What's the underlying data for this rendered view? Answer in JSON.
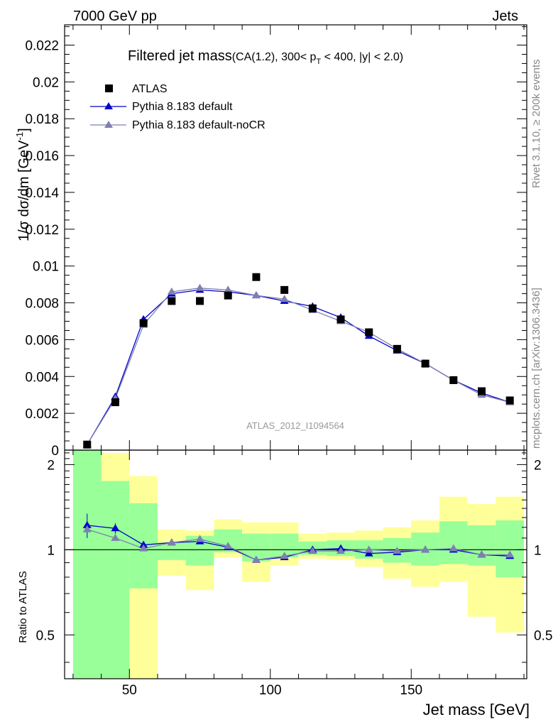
{
  "header": {
    "left": "7000 GeV pp",
    "right": "Jets"
  },
  "side": {
    "rivet": "Rivet 3.1.10, ≥ 200k events",
    "mcplots": "mcplots.cern.ch [arXiv:1306.3436]"
  },
  "chart_data": {
    "type": "scatter",
    "title_main": "Filtered jet mass",
    "title_sub": "(CA(1.2), 300< p",
    "title_sub_T": "T",
    "title_sub_end": " < 400, |y| < 2.0)",
    "ylabel": "1/σ dσ/dm [GeV",
    "ylabel_exp": "-1",
    "ylabel_end": "]",
    "xlabel": "Jet mass [GeV]",
    "ratio_ylabel": "Ratio to ATLAS",
    "analysis_id": "ATLAS_2012_I1094564",
    "xlim": [
      27,
      191
    ],
    "ylim": [
      0,
      0.0231
    ],
    "ratio_ylim": [
      0.35,
      2.25
    ],
    "y_ticks": [
      "0",
      "0.002",
      "0.004",
      "0.006",
      "0.008",
      "0.01",
      "0.012",
      "0.014",
      "0.016",
      "0.018",
      "0.02",
      "0.022"
    ],
    "y_tick_values": [
      0,
      0.002,
      0.004,
      0.006,
      0.008,
      0.01,
      0.012,
      0.014,
      0.016,
      0.018,
      0.02,
      0.022
    ],
    "ratio_ticks": [
      "0.5",
      "1",
      "2"
    ],
    "ratio_tick_values": [
      0.5,
      1,
      2
    ],
    "x_ticks": [
      "50",
      "100",
      "150"
    ],
    "x_tick_values": [
      50,
      100,
      150
    ],
    "legend": [
      "ATLAS",
      "Pythia 8.183 default",
      "Pythia 8.183 default-noCR"
    ],
    "colors": {
      "data": "#000000",
      "default": "#0000cc",
      "nocr": "#7f7fb2",
      "band_inner": "#99ff99",
      "band_outer": "#ffff99"
    },
    "bin_edges": [
      30,
      40,
      50,
      60,
      70,
      80,
      90,
      100,
      110,
      120,
      130,
      140,
      150,
      160,
      170,
      180,
      190
    ],
    "x": [
      35,
      45,
      55,
      65,
      75,
      85,
      95,
      105,
      115,
      125,
      135,
      145,
      155,
      165,
      175,
      185
    ],
    "atlas": [
      0.0003,
      0.0026,
      0.0069,
      0.0081,
      0.0081,
      0.0084,
      0.0094,
      0.0087,
      0.0077,
      0.0071,
      0.0064,
      0.0055,
      0.0047,
      0.0038,
      0.0032,
      0.0027
    ],
    "default": [
      0.0003,
      0.0029,
      0.0071,
      0.0085,
      0.0087,
      0.0086,
      0.0084,
      0.0081,
      0.0078,
      0.0072,
      0.0062,
      0.0054,
      0.0047,
      0.0038,
      0.0031,
      0.0026
    ],
    "nocr": [
      0.0003,
      0.0028,
      0.0068,
      0.0086,
      0.0088,
      0.0087,
      0.0084,
      0.0082,
      0.0076,
      0.007,
      0.0064,
      0.0055,
      0.0047,
      0.0038,
      0.003,
      0.0026
    ],
    "ratio_default": [
      1.22,
      1.19,
      1.04,
      1.06,
      1.07,
      1.02,
      0.92,
      0.94,
      1.0,
      1.01,
      0.97,
      0.98,
      1.0,
      1.0,
      0.96,
      0.95
    ],
    "ratio_nocr": [
      1.18,
      1.1,
      1.01,
      1.06,
      1.09,
      1.03,
      0.92,
      0.95,
      0.99,
      0.99,
      1.0,
      0.99,
      1.0,
      1.01,
      0.96,
      0.96
    ],
    "ratio_default_err": [
      0.12,
      0.05,
      0.02,
      0.01,
      0.01,
      0.01,
      0.01,
      0.01,
      0.01,
      0.01,
      0.01,
      0.01,
      0.02,
      0.02,
      0.02,
      0.02
    ],
    "band_inner": [
      [
        0.35,
        2.25
      ],
      [
        0.35,
        1.75
      ],
      [
        0.73,
        1.46
      ],
      [
        0.92,
        1.06
      ],
      [
        0.88,
        1.12
      ],
      [
        0.98,
        1.18
      ],
      [
        0.91,
        1.14
      ],
      [
        0.94,
        1.14
      ],
      [
        0.96,
        1.07
      ],
      [
        0.95,
        1.08
      ],
      [
        0.93,
        1.08
      ],
      [
        0.9,
        1.1
      ],
      [
        0.88,
        1.15
      ],
      [
        0.89,
        1.26
      ],
      [
        0.88,
        1.22
      ],
      [
        0.8,
        1.27
      ]
    ],
    "band_outer": [
      [
        0.35,
        2.25
      ],
      [
        0.35,
        2.2
      ],
      [
        0.35,
        1.82
      ],
      [
        0.81,
        1.18
      ],
      [
        0.72,
        1.17
      ],
      [
        0.94,
        1.28
      ],
      [
        0.77,
        1.25
      ],
      [
        0.88,
        1.25
      ],
      [
        0.93,
        1.14
      ],
      [
        0.92,
        1.15
      ],
      [
        0.87,
        1.17
      ],
      [
        0.79,
        1.2
      ],
      [
        0.74,
        1.27
      ],
      [
        0.77,
        1.54
      ],
      [
        0.58,
        1.45
      ],
      [
        0.51,
        1.54
      ]
    ]
  }
}
